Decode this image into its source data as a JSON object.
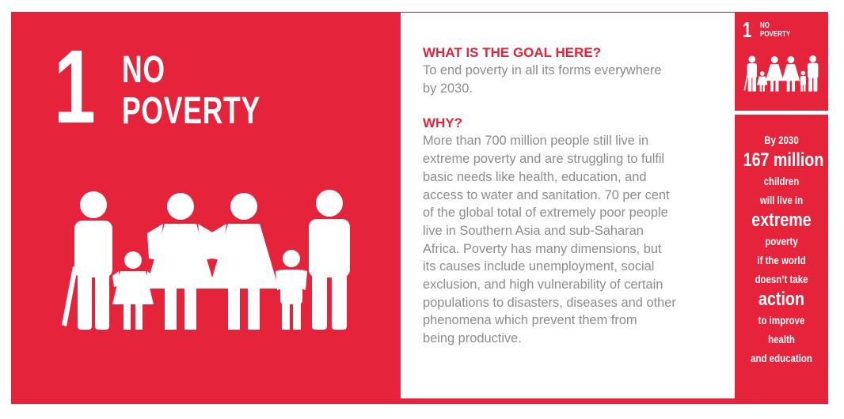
{
  "goal": {
    "number": "1",
    "title_lines": [
      "NO",
      "POVERTY"
    ]
  },
  "content": {
    "goal_heading": "WHAT IS THE GOAL HERE?",
    "goal_text_lines": [
      "To end poverty in all its forms everywhere",
      "by 2030."
    ],
    "why_heading": "WHY?",
    "why_text_lines": [
      "More than 700 million people still live in",
      "extreme poverty and are struggling to fulfil",
      "basic needs like health, education, and",
      "access to water and sanitation. 70 per cent",
      "of the global total of extremely poor people",
      "live in Southern Asia and sub-Saharan",
      "Africa. Poverty has many dimensions, but",
      "its causes include unemployment, social",
      "exclusion, and high vulnerability of certain",
      "populations to disasters, diseases and other",
      "phenomena which prevent them from",
      "being productive."
    ]
  },
  "mini_icon": {
    "number": "1",
    "title_lines": [
      "NO",
      "POVERTY"
    ]
  },
  "fact": {
    "lines": [
      "By 2030",
      "167 million",
      "children",
      "will live in",
      "extreme",
      "poverty",
      "if the world",
      "doesn’t take",
      "action",
      "to improve",
      "health",
      "and education"
    ],
    "large_line_indices": [
      1,
      4,
      8
    ]
  },
  "colors": {
    "brand_red": "#e5243b",
    "body_grey": "#8c8c8c",
    "white": "#ffffff"
  },
  "icons": [
    "family-icon"
  ]
}
